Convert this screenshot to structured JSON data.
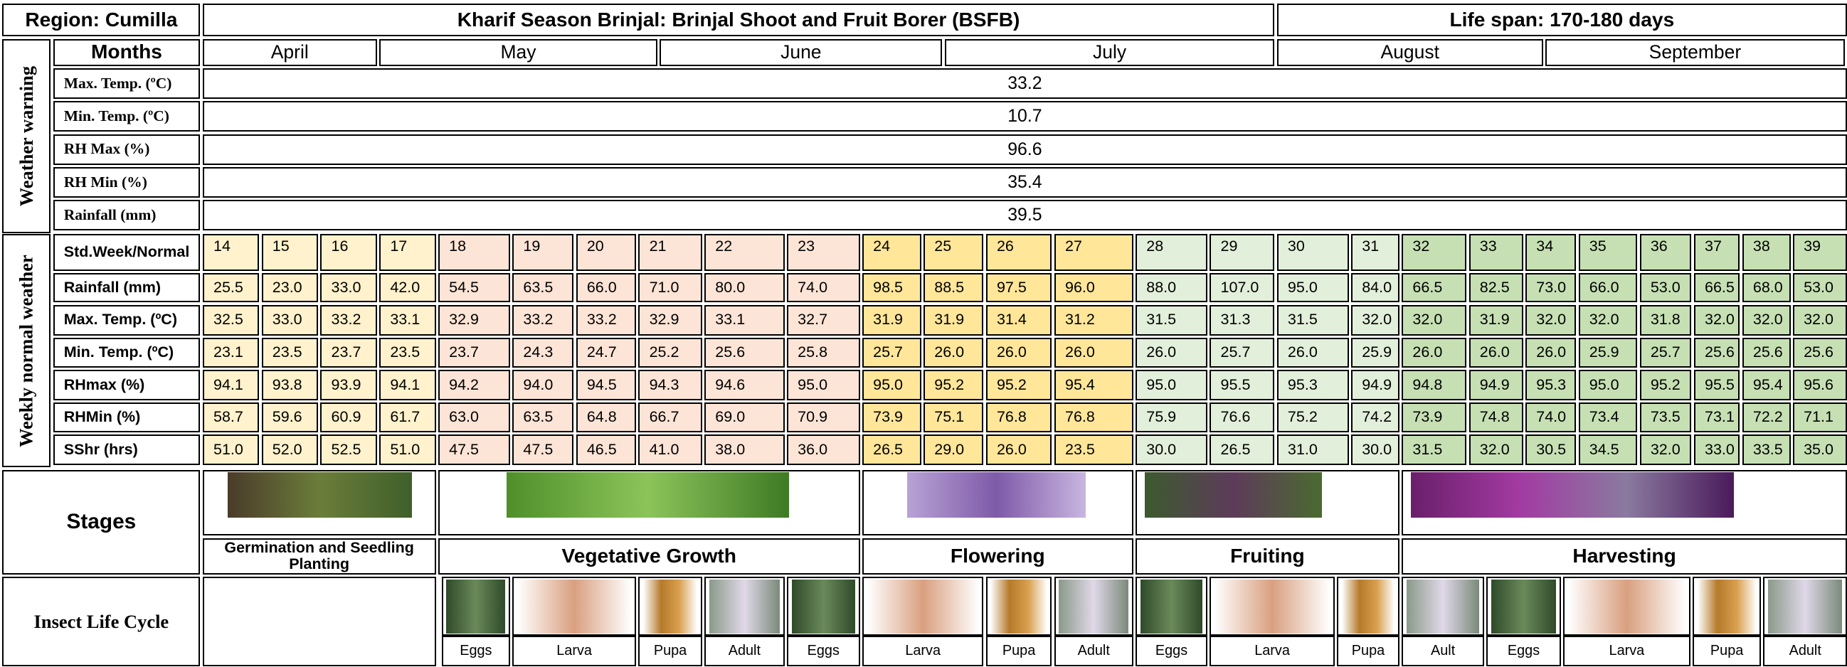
{
  "header": {
    "region": "Region: Cumilla",
    "title": "Kharif Season Brinjal: Brinjal Shoot and Fruit Borer (BSFB)",
    "lifespan": "Life span: 170-180 days"
  },
  "months": {
    "label": "Months",
    "items": [
      "April",
      "May",
      "June",
      "July",
      "August",
      "September"
    ]
  },
  "weather_warning": {
    "label": "Weather warning",
    "rows": [
      {
        "label": "Max. Temp. (ºC)",
        "value": "33.2"
      },
      {
        "label": "Min. Temp. (ºC)",
        "value": "10.7"
      },
      {
        "label": "RH Max (%)",
        "value": "96.6"
      },
      {
        "label": "RH Min (%)",
        "value": "35.4"
      },
      {
        "label": "Rainfall (mm)",
        "value": "39.5"
      }
    ]
  },
  "weekly": {
    "label": "Weekly normal weather",
    "rows": [
      {
        "label": "Std.Week/Normal",
        "values": [
          "14",
          "15",
          "16",
          "17",
          "18",
          "19",
          "20",
          "21",
          "22",
          "23",
          "24",
          "25",
          "26",
          "27",
          "28",
          "29",
          "30",
          "31",
          "32",
          "33",
          "34",
          "35",
          "36",
          "37",
          "38",
          "39"
        ]
      },
      {
        "label": "Rainfall (mm)",
        "values": [
          "25.5",
          "23.0",
          "33.0",
          "42.0",
          "54.5",
          "63.5",
          "66.0",
          "71.0",
          "80.0",
          "74.0",
          "98.5",
          "88.5",
          "97.5",
          "96.0",
          "88.0",
          "107.0",
          "95.0",
          "84.0",
          "66.5",
          "82.5",
          "73.0",
          "66.0",
          "53.0",
          "66.5",
          "68.0",
          "53.0"
        ]
      },
      {
        "label": "Max. Temp. (ºC)",
        "values": [
          "32.5",
          "33.0",
          "33.2",
          "33.1",
          "32.9",
          "33.2",
          "33.2",
          "32.9",
          "33.1",
          "32.7",
          "31.9",
          "31.9",
          "31.4",
          "31.2",
          "31.5",
          "31.3",
          "31.5",
          "32.0",
          "32.0",
          "31.9",
          "32.0",
          "32.0",
          "31.8",
          "32.0",
          "32.0",
          "32.0"
        ]
      },
      {
        "label": "Min. Temp. (ºC)",
        "values": [
          "23.1",
          "23.5",
          "23.7",
          "23.5",
          "23.7",
          "24.3",
          "24.7",
          "25.2",
          "25.6",
          "25.8",
          "25.7",
          "26.0",
          "26.0",
          "26.0",
          "26.0",
          "25.7",
          "26.0",
          "25.9",
          "26.0",
          "26.0",
          "26.0",
          "25.9",
          "25.7",
          "25.6",
          "25.6",
          "25.6"
        ]
      },
      {
        "label": "RHmax (%)",
        "values": [
          "94.1",
          "93.8",
          "93.9",
          "94.1",
          "94.2",
          "94.0",
          "94.5",
          "94.3",
          "94.6",
          "95.0",
          "95.0",
          "95.2",
          "95.2",
          "95.4",
          "95.0",
          "95.5",
          "95.3",
          "94.9",
          "94.8",
          "94.9",
          "95.3",
          "95.0",
          "95.2",
          "95.5",
          "95.4",
          "95.6"
        ]
      },
      {
        "label": "RHMin (%)",
        "values": [
          "58.7",
          "59.6",
          "60.9",
          "61.7",
          "63.0",
          "63.5",
          "64.8",
          "66.7",
          "69.0",
          "70.9",
          "73.9",
          "75.1",
          "76.8",
          "76.8",
          "75.9",
          "76.6",
          "75.2",
          "74.2",
          "73.9",
          "74.8",
          "74.0",
          "73.4",
          "73.5",
          "73.1",
          "72.2",
          "71.1"
        ]
      },
      {
        "label": "SShr (hrs)",
        "values": [
          "51.0",
          "52.0",
          "52.5",
          "51.0",
          "47.5",
          "47.5",
          "46.5",
          "41.0",
          "38.0",
          "36.0",
          "26.5",
          "29.0",
          "26.0",
          "23.5",
          "30.0",
          "26.5",
          "31.0",
          "30.0",
          "31.5",
          "32.0",
          "30.5",
          "34.5",
          "32.0",
          "33.0",
          "33.5",
          "35.0"
        ]
      }
    ]
  },
  "stages": {
    "label": "Stages",
    "items": [
      "Germination and Seedling Planting",
      "Vegetative Growth",
      "Flowering",
      "Fruiting",
      "Harvesting"
    ]
  },
  "insect": {
    "label": "Insect Life Cycle",
    "items": [
      "Eggs",
      "Larva",
      "Pupa",
      "Adult",
      "Eggs",
      "Larva",
      "Pupa",
      "Adult",
      "Eggs",
      "Larva",
      "Pupa",
      "Ault",
      "Eggs",
      "Larva",
      "Pupa",
      "Adult"
    ]
  }
}
